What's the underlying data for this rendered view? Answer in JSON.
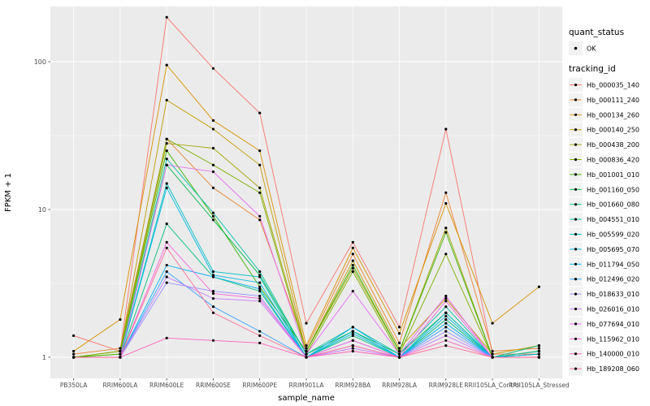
{
  "axes": {
    "x_title": "sample_name",
    "y_title": "FPKM + 1",
    "y_ticks": [
      1,
      10,
      100
    ],
    "y_scale": "log10"
  },
  "legend": {
    "quant_title": "quant_status",
    "quant_items": [
      {
        "label": "OK",
        "symbol": "black-point"
      }
    ],
    "tracking_title": "tracking_id"
  },
  "style": {
    "panel_bg": "#EBEBEB",
    "grid_major": "#FFFFFF",
    "grid_minor": "#FFFFFF",
    "point_color": "#000000",
    "axis_text": "#4D4D4D",
    "tick_color": "#333333",
    "legend_key_bg": "#F2F2F2"
  },
  "chart_data": {
    "type": "line",
    "title": "",
    "xlabel": "sample_name",
    "ylabel": "FPKM + 1",
    "y_scale": "log10",
    "ylim": [
      0.72,
      236
    ],
    "grid": true,
    "legend_position": "right",
    "point_marker": "black-filled-circle",
    "categories": [
      "PB350LA",
      "RRIM600LA",
      "RRIM600LE",
      "RRIM600SE",
      "RRIM600PE",
      "RRIM901LA",
      "RRIM928BA",
      "RRIM928LA",
      "RRIM928LE",
      "RRII105LA_Control",
      "RRII105LA_Stressed"
    ],
    "series": [
      {
        "name": "Hb_000035_140",
        "color": "#F8766D",
        "values": [
          1.4,
          1.1,
          200,
          90,
          45,
          1.7,
          6.0,
          1.6,
          35,
          1.05,
          1.05
        ]
      },
      {
        "name": "Hb_000111_240",
        "color": "#EA8331",
        "values": [
          1.05,
          1.15,
          30,
          14,
          8.5,
          1.15,
          5.0,
          1.25,
          13,
          1.1,
          1.15
        ]
      },
      {
        "name": "Hb_000134_260",
        "color": "#D89000",
        "values": [
          1.1,
          1.8,
          95,
          40,
          25,
          1.2,
          5.5,
          1.45,
          11,
          1.7,
          3.0
        ]
      },
      {
        "name": "Hb_000140_250",
        "color": "#C09B00",
        "values": [
          1.0,
          1.1,
          55,
          35,
          20,
          1.1,
          4.5,
          1.15,
          2.5,
          1.05,
          1.2
        ]
      },
      {
        "name": "Hb_000438_200",
        "color": "#A3A500",
        "values": [
          1.0,
          1.05,
          28,
          26,
          14,
          1.1,
          4.0,
          1.1,
          7.5,
          1.0,
          1.1
        ]
      },
      {
        "name": "Hb_000836_420",
        "color": "#7CAE00",
        "values": [
          1.0,
          1.1,
          30,
          20,
          13,
          1.05,
          3.8,
          1.05,
          5.0,
          1.0,
          1.05
        ]
      },
      {
        "name": "Hb_001001_010",
        "color": "#39B600",
        "values": [
          1.0,
          1.05,
          25,
          9.0,
          3.0,
          1.1,
          4.2,
          1.1,
          7.0,
          1.0,
          1.1
        ]
      },
      {
        "name": "Hb_001160_050",
        "color": "#00BB4E",
        "values": [
          1.0,
          1.0,
          20,
          8.5,
          3.6,
          1.05,
          1.5,
          1.05,
          2.0,
          1.0,
          1.05
        ]
      },
      {
        "name": "Hb_001660_080",
        "color": "#00BF7D",
        "values": [
          1.0,
          1.0,
          8.0,
          3.5,
          2.8,
          1.0,
          1.4,
          1.0,
          1.8,
          1.0,
          1.2
        ]
      },
      {
        "name": "Hb_004551_010",
        "color": "#00C1A3",
        "values": [
          1.0,
          1.0,
          22,
          9.5,
          3.8,
          1.05,
          1.6,
          1.05,
          2.2,
          1.0,
          1.1
        ]
      },
      {
        "name": "Hb_005599_020",
        "color": "#00BFC4",
        "values": [
          1.0,
          1.0,
          15,
          3.8,
          3.5,
          1.0,
          1.5,
          1.0,
          2.0,
          1.0,
          1.0
        ]
      },
      {
        "name": "Hb_005695_070",
        "color": "#00BAE0",
        "values": [
          1.0,
          1.0,
          14,
          3.6,
          3.2,
          1.0,
          1.45,
          1.0,
          1.9,
          1.0,
          1.0
        ]
      },
      {
        "name": "Hb_011794_050",
        "color": "#00B0F6",
        "values": [
          1.0,
          1.0,
          4.2,
          3.5,
          2.9,
          1.0,
          1.6,
          1.0,
          1.7,
          1.0,
          1.05
        ]
      },
      {
        "name": "Hb_012496_020",
        "color": "#35A2FF",
        "values": [
          1.0,
          1.0,
          3.8,
          2.2,
          1.5,
          1.0,
          1.3,
          1.0,
          1.6,
          1.0,
          1.0
        ]
      },
      {
        "name": "Hb_018633_010",
        "color": "#9590FF",
        "values": [
          1.0,
          1.0,
          3.2,
          2.8,
          2.6,
          1.0,
          1.2,
          1.0,
          1.5,
          1.0,
          1.0
        ]
      },
      {
        "name": "Hb_026016_010",
        "color": "#C77CFF",
        "values": [
          1.0,
          1.0,
          3.5,
          2.5,
          2.4,
          1.0,
          1.15,
          1.0,
          1.4,
          1.0,
          1.0
        ]
      },
      {
        "name": "Hb_077694_010",
        "color": "#E76BF3",
        "values": [
          1.0,
          1.0,
          20,
          18,
          9.0,
          1.05,
          2.8,
          1.05,
          2.6,
          1.0,
          1.0
        ]
      },
      {
        "name": "Hb_115962_010",
        "color": "#FA62DB",
        "values": [
          1.0,
          1.0,
          6.0,
          2.7,
          2.5,
          1.0,
          1.3,
          1.0,
          2.4,
          1.0,
          1.0
        ]
      },
      {
        "name": "Hb_140000_010",
        "color": "#FF62BC",
        "values": [
          1.0,
          1.0,
          1.35,
          1.3,
          1.25,
          1.0,
          1.1,
          1.0,
          1.3,
          1.0,
          1.0
        ]
      },
      {
        "name": "Hb_189208_060",
        "color": "#FF6A98",
        "values": [
          1.0,
          1.0,
          5.5,
          2.0,
          1.4,
          1.0,
          1.2,
          1.0,
          1.2,
          1.0,
          1.0
        ]
      }
    ]
  }
}
